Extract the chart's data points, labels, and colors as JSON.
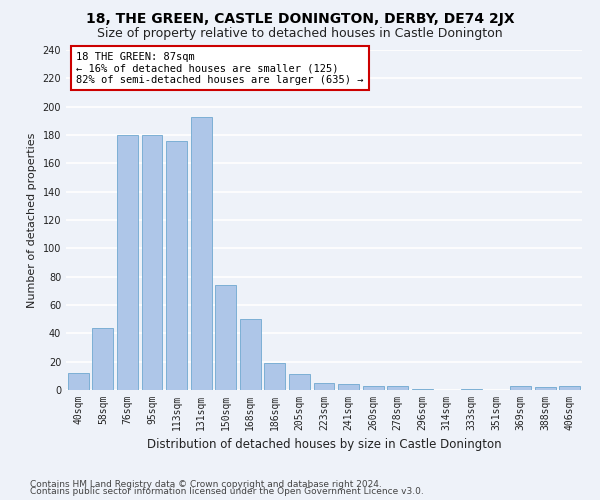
{
  "title1": "18, THE GREEN, CASTLE DONINGTON, DERBY, DE74 2JX",
  "title2": "Size of property relative to detached houses in Castle Donington",
  "xlabel": "Distribution of detached houses by size in Castle Donington",
  "ylabel": "Number of detached properties",
  "categories": [
    "40sqm",
    "58sqm",
    "76sqm",
    "95sqm",
    "113sqm",
    "131sqm",
    "150sqm",
    "168sqm",
    "186sqm",
    "205sqm",
    "223sqm",
    "241sqm",
    "260sqm",
    "278sqm",
    "296sqm",
    "314sqm",
    "333sqm",
    "351sqm",
    "369sqm",
    "388sqm",
    "406sqm"
  ],
  "values": [
    12,
    44,
    180,
    180,
    176,
    193,
    74,
    50,
    19,
    11,
    5,
    4,
    3,
    3,
    1,
    0,
    1,
    0,
    3,
    2,
    3
  ],
  "bar_color": "#aec6e8",
  "bar_edge_color": "#6fa8d0",
  "annotation_text": "18 THE GREEN: 87sqm\n← 16% of detached houses are smaller (125)\n82% of semi-detached houses are larger (635) →",
  "annotation_box_color": "#ffffff",
  "annotation_box_edge_color": "#cc0000",
  "ylim": [
    0,
    240
  ],
  "yticks": [
    0,
    20,
    40,
    60,
    80,
    100,
    120,
    140,
    160,
    180,
    200,
    220,
    240
  ],
  "footer1": "Contains HM Land Registry data © Crown copyright and database right 2024.",
  "footer2": "Contains public sector information licensed under the Open Government Licence v3.0.",
  "background_color": "#eef2f9",
  "grid_color": "#ffffff",
  "title1_fontsize": 10,
  "title2_fontsize": 9,
  "xlabel_fontsize": 8.5,
  "ylabel_fontsize": 8,
  "tick_fontsize": 7,
  "footer_fontsize": 6.5,
  "annotation_fontsize": 7.5
}
